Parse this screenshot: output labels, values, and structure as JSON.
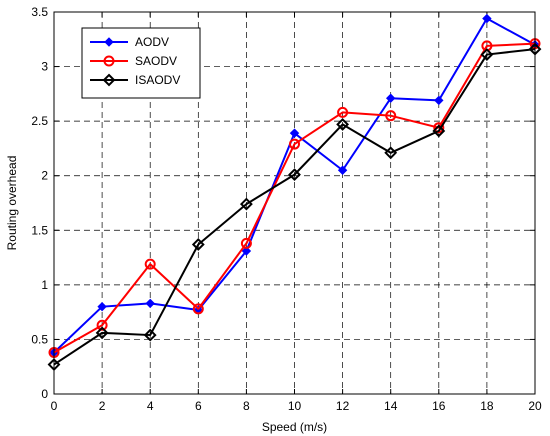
{
  "chart_data": {
    "type": "line",
    "title": "",
    "xlabel": "Speed (m/s)",
    "ylabel": "Routing overhead",
    "xlim": [
      0,
      20
    ],
    "ylim": [
      0,
      3.5
    ],
    "xticks": [
      0,
      2,
      4,
      6,
      8,
      10,
      12,
      14,
      16,
      18,
      20
    ],
    "yticks": [
      0,
      0.5,
      1,
      1.5,
      2,
      2.5,
      3,
      3.5
    ],
    "grid": true,
    "grid_style": "dashed",
    "legend_position": "top-left",
    "series": [
      {
        "name": "AODV",
        "color": "#0000ff",
        "marker": "diamond-filled",
        "x": [
          0,
          2,
          4,
          6,
          8,
          10,
          12,
          14,
          16,
          18,
          20
        ],
        "y": [
          0.38,
          0.8,
          0.83,
          0.77,
          1.31,
          2.39,
          2.05,
          2.71,
          2.69,
          3.44,
          3.2
        ]
      },
      {
        "name": "SAODV",
        "color": "#ff0000",
        "marker": "circle-open",
        "x": [
          0,
          2,
          4,
          6,
          8,
          10,
          12,
          14,
          16,
          18,
          20
        ],
        "y": [
          0.38,
          0.63,
          1.19,
          0.78,
          1.38,
          2.29,
          2.58,
          2.55,
          2.44,
          3.19,
          3.21
        ]
      },
      {
        "name": "ISAODV",
        "color": "#000000",
        "marker": "diamond-open",
        "x": [
          0,
          2,
          4,
          6,
          8,
          10,
          12,
          14,
          16,
          18,
          20
        ],
        "y": [
          0.27,
          0.56,
          0.54,
          1.37,
          1.74,
          2.01,
          2.47,
          2.21,
          2.41,
          3.11,
          3.16
        ]
      }
    ]
  }
}
